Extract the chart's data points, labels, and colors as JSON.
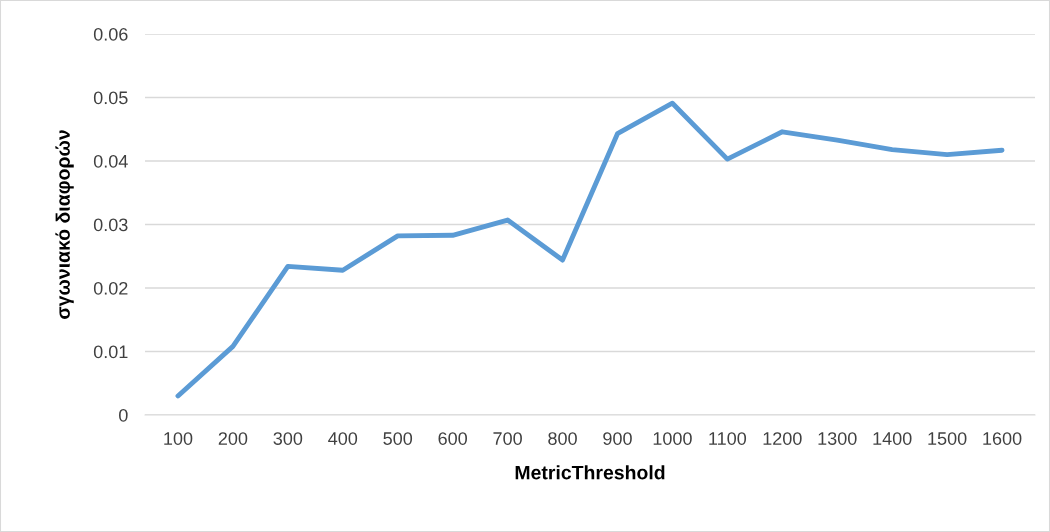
{
  "chart_data": {
    "type": "line",
    "xlabel": "MetricThreshold",
    "ylabel": "σγωνιακό διαφορών",
    "categories": [
      "100",
      "200",
      "300",
      "400",
      "500",
      "600",
      "700",
      "800",
      "900",
      "1000",
      "1100",
      "1200",
      "1300",
      "1400",
      "1500",
      "1600"
    ],
    "series": [
      {
        "color": "#5b9bd5",
        "values": [
          0.003,
          0.0108,
          0.0234,
          0.0228,
          0.0282,
          0.0283,
          0.0307,
          0.0244,
          0.0443,
          0.0491,
          0.0403,
          0.0446,
          0.0433,
          0.0418,
          0.041,
          0.0417
        ]
      }
    ],
    "ylim": [
      0,
      0.06
    ],
    "yticks": [
      {
        "value": 0,
        "label": "0"
      },
      0.01,
      0.02,
      0.03,
      0.04,
      0.05,
      0.06
    ],
    "grid": "y",
    "legend": false,
    "marker": "none",
    "line_style": "solid"
  }
}
